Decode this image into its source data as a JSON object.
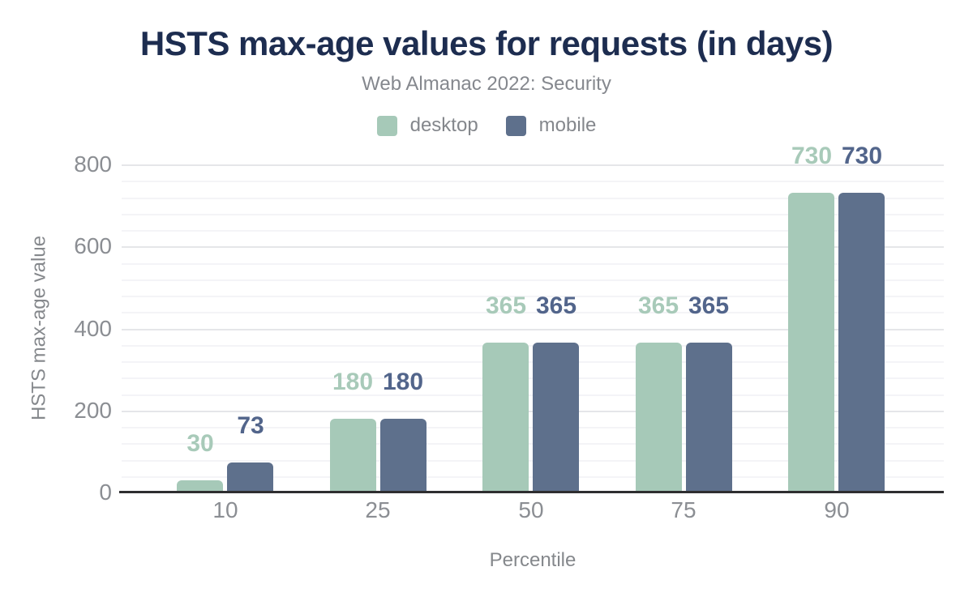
{
  "title": "HSTS max-age values for requests (in days)",
  "subtitle": "Web Almanac 2022: Security",
  "legend": {
    "items": [
      {
        "label": "desktop",
        "color": "#a6c9b8"
      },
      {
        "label": "mobile",
        "color": "#5e708c"
      }
    ]
  },
  "colors": {
    "title": "#1d2d50",
    "subtitle": "#85888e",
    "legend_text": "#84878c",
    "axis_text": "#8b8e93",
    "axis_title_text": "#85888c",
    "axis_line": "#2e2e30",
    "grid_major": "#e5e6e9",
    "grid_minor": "#f4f4f7",
    "desktop": "#a6c9b8",
    "mobile": "#5e708c",
    "desktop_value_label": "#a8cab9",
    "mobile_value_label": "#52658b"
  },
  "chart_data": {
    "type": "bar",
    "title": "HSTS max-age values for requests (in days)",
    "subtitle": "Web Almanac 2022: Security",
    "categories": [
      "10",
      "25",
      "50",
      "75",
      "90"
    ],
    "series": [
      {
        "name": "desktop",
        "color": "#a6c9b8",
        "label_color": "#a8cab9",
        "values": [
          30,
          180,
          365,
          365,
          730
        ]
      },
      {
        "name": "mobile",
        "color": "#5e708c",
        "label_color": "#52658b",
        "values": [
          73,
          180,
          365,
          365,
          730
        ]
      }
    ],
    "xlabel": "Percentile",
    "ylabel": "HSTS max-age value",
    "ylim": [
      0,
      800
    ],
    "ytick_interval": 200,
    "ytick_labels": [
      "0",
      "200",
      "400",
      "600",
      "800"
    ],
    "minor_tick_interval": 40,
    "grid": true,
    "legend_position": "top",
    "value_labels": true
  }
}
